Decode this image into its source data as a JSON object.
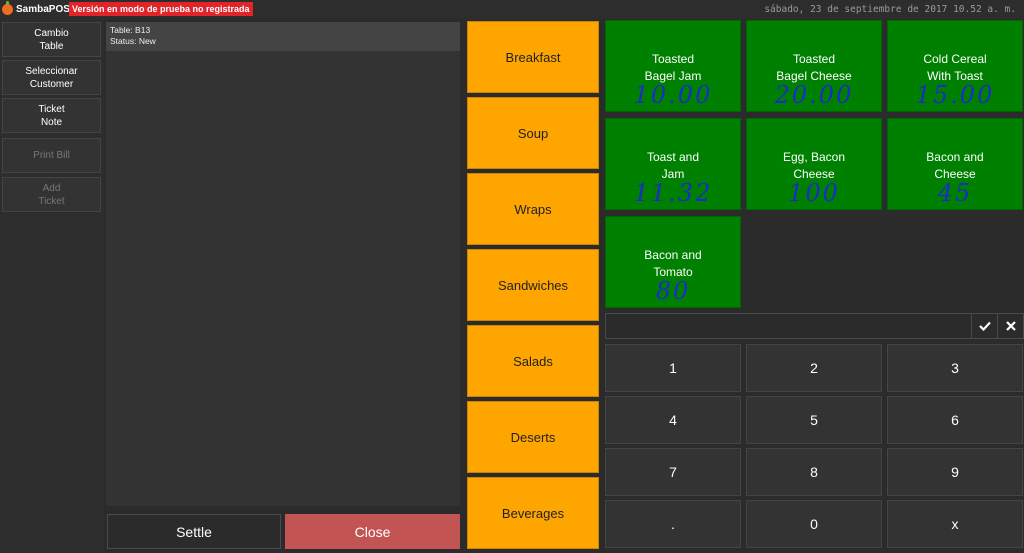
{
  "app": {
    "name": "SambaPOS",
    "trial_notice": "Versión en modo de prueba no registrada",
    "datetime": "sábado, 23 de septiembre de 2017 10.52 a. m."
  },
  "actions": [
    {
      "label": "Cambio\nTable",
      "enabled": true
    },
    {
      "label": "Seleccionar\nCustomer",
      "enabled": true
    },
    {
      "label": "Ticket\nNote",
      "enabled": true
    },
    {
      "label": "Print Bill",
      "enabled": false
    },
    {
      "label": "Add\nTicket",
      "enabled": false
    }
  ],
  "ticket": {
    "table": "Table: B13",
    "status": "Status: New"
  },
  "footer": {
    "settle_label": "Settle",
    "close_label": "Close"
  },
  "categories": [
    "Breakfast",
    "Soup",
    "Wraps",
    "Sandwiches",
    "Salads",
    "Deserts",
    "Beverages"
  ],
  "menu_items": [
    {
      "label": "Toasted\nBagel Jam",
      "price": "10.00"
    },
    {
      "label": "Toasted\nBagel Cheese",
      "price": "20.00"
    },
    {
      "label": "Cold Cereal\nWith Toast",
      "price": "15.00"
    },
    {
      "label": "Toast and\nJam",
      "price": "11.32"
    },
    {
      "label": "Egg, Bacon\nCheese",
      "price": "100"
    },
    {
      "label": "Bacon and\nCheese",
      "price": "45"
    },
    {
      "label": "Bacon and\nTomato",
      "price": "80"
    }
  ],
  "input": {
    "value": "",
    "placeholder": ""
  },
  "numpad": [
    "1",
    "2",
    "3",
    "4",
    "5",
    "6",
    "7",
    "8",
    "9",
    ".",
    "0",
    "x"
  ],
  "colors": {
    "category": "#ffa500",
    "menu_item": "#008000",
    "close": "#c25454",
    "trial_badge": "#e0242a",
    "handwritten_price": "#1c2cc8"
  },
  "icons": {
    "confirm": "check-icon",
    "clear": "close-icon",
    "logo": "orange-logo-icon"
  }
}
